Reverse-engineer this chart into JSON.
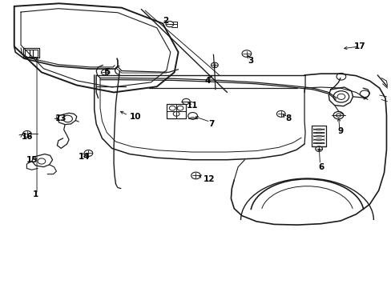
{
  "background_color": "#ffffff",
  "line_color": "#1a1a1a",
  "fig_width": 4.89,
  "fig_height": 3.6,
  "dpi": 100,
  "label_positions": {
    "1": [
      0.09,
      0.325,
      "center"
    ],
    "2": [
      0.415,
      0.93,
      "left"
    ],
    "3": [
      0.64,
      0.79,
      "center"
    ],
    "4": [
      0.53,
      0.72,
      "center"
    ],
    "5": [
      0.272,
      0.75,
      "center"
    ],
    "6": [
      0.82,
      0.42,
      "center"
    ],
    "7": [
      0.54,
      0.57,
      "center"
    ],
    "8": [
      0.73,
      0.59,
      "left"
    ],
    "9": [
      0.87,
      0.545,
      "center"
    ],
    "10": [
      0.33,
      0.595,
      "left"
    ],
    "11": [
      0.49,
      0.635,
      "center"
    ],
    "12": [
      0.52,
      0.378,
      "left"
    ],
    "13": [
      0.14,
      0.59,
      "left"
    ],
    "14": [
      0.215,
      0.455,
      "center"
    ],
    "15": [
      0.08,
      0.445,
      "center"
    ],
    "16": [
      0.053,
      0.525,
      "left"
    ],
    "17": [
      0.92,
      0.84,
      "center"
    ]
  }
}
